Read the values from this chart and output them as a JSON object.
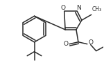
{
  "bg_color": "#ffffff",
  "line_color": "#2a2a2a",
  "line_width": 1.1,
  "figsize": [
    1.5,
    0.94
  ],
  "dpi": 100,
  "xlim": [
    0,
    150
  ],
  "ylim": [
    0,
    94
  ]
}
